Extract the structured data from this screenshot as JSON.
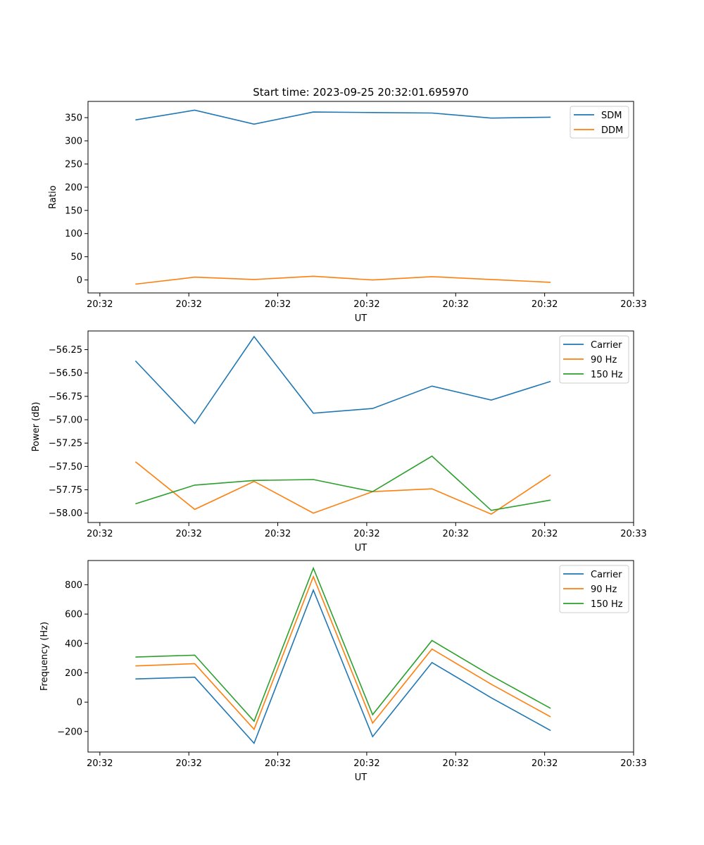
{
  "figure": {
    "title": "Start time: 2023-09-25 20:32:01.695970"
  },
  "colors": {
    "c0": "#1f77b4",
    "c1": "#ff7f0e",
    "c2": "#2ca02c",
    "axis": "#000000",
    "legend_border": "#cccccc"
  },
  "chart_data": [
    {
      "type": "line",
      "title": "Start time: 2023-09-25 20:32:01.695970",
      "xlabel": "UT",
      "ylabel": "Ratio",
      "x": [
        1,
        2,
        3,
        4,
        5,
        6,
        7,
        8
      ],
      "xlim": [
        0.2,
        9.4
      ],
      "x_ticks": [
        0.4,
        1.9,
        3.4,
        4.9,
        6.4,
        7.9,
        9.4
      ],
      "x_tick_labels": [
        "20:32",
        "20:32",
        "20:32",
        "20:32",
        "20:32",
        "20:32",
        "20:33"
      ],
      "ylim": [
        -28,
        385
      ],
      "y_ticks": [
        0,
        50,
        100,
        150,
        200,
        250,
        300,
        350
      ],
      "y_tick_labels": [
        "0",
        "50",
        "100",
        "150",
        "200",
        "250",
        "300",
        "350"
      ],
      "legend_position": "top-right",
      "series": [
        {
          "name": "SDM",
          "color_key": "c0",
          "values": [
            345,
            366,
            336,
            362,
            361,
            360,
            349,
            351
          ]
        },
        {
          "name": "DDM",
          "color_key": "c1",
          "values": [
            -9,
            6,
            1,
            8,
            0,
            7,
            1,
            -5
          ]
        }
      ]
    },
    {
      "type": "line",
      "title": "",
      "xlabel": "UT",
      "ylabel": "Power (dB)",
      "x": [
        1,
        2,
        3,
        4,
        5,
        6,
        7,
        8
      ],
      "xlim": [
        0.2,
        9.4
      ],
      "x_ticks": [
        0.4,
        1.9,
        3.4,
        4.9,
        6.4,
        7.9,
        9.4
      ],
      "x_tick_labels": [
        "20:32",
        "20:32",
        "20:32",
        "20:32",
        "20:32",
        "20:32",
        "20:33"
      ],
      "ylim": [
        -58.1,
        -56.05
      ],
      "y_ticks": [
        -58.0,
        -57.75,
        -57.5,
        -57.25,
        -57.0,
        -56.75,
        -56.5,
        -56.25
      ],
      "y_tick_labels": [
        "−58.00",
        "−57.75",
        "−57.50",
        "−57.25",
        "−57.00",
        "−56.75",
        "−56.50",
        "−56.25"
      ],
      "legend_position": "top-right",
      "series": [
        {
          "name": "Carrier",
          "color_key": "c0",
          "values": [
            -56.37,
            -57.04,
            -56.11,
            -56.93,
            -56.88,
            -56.64,
            -56.79,
            -56.59
          ]
        },
        {
          "name": "90 Hz",
          "color_key": "c1",
          "values": [
            -57.45,
            -57.96,
            -57.66,
            -58.0,
            -57.77,
            -57.74,
            -58.01,
            -57.59
          ]
        },
        {
          "name": "150 Hz",
          "color_key": "c2",
          "values": [
            -57.9,
            -57.7,
            -57.65,
            -57.64,
            -57.77,
            -57.39,
            -57.97,
            -57.86
          ]
        }
      ]
    },
    {
      "type": "line",
      "title": "",
      "xlabel": "UT",
      "ylabel": "Frequency (Hz)",
      "x": [
        1,
        2,
        3,
        4,
        5,
        6,
        7,
        8
      ],
      "xlim": [
        0.2,
        9.4
      ],
      "x_ticks": [
        0.4,
        1.9,
        3.4,
        4.9,
        6.4,
        7.9,
        9.4
      ],
      "x_tick_labels": [
        "20:32",
        "20:32",
        "20:32",
        "20:32",
        "20:32",
        "20:32",
        "20:33"
      ],
      "ylim": [
        -340,
        965
      ],
      "y_ticks": [
        -200,
        0,
        200,
        400,
        600,
        800
      ],
      "y_tick_labels": [
        "−200",
        "0",
        "200",
        "400",
        "600",
        "800"
      ],
      "legend_position": "top-right",
      "series": [
        {
          "name": "Carrier",
          "color_key": "c0",
          "values": [
            158,
            170,
            -280,
            763,
            -235,
            270,
            30,
            -193
          ]
        },
        {
          "name": "90 Hz",
          "color_key": "c1",
          "values": [
            247,
            262,
            -185,
            855,
            -143,
            362,
            122,
            -100
          ]
        },
        {
          "name": "150 Hz",
          "color_key": "c2",
          "values": [
            307,
            320,
            -130,
            913,
            -85,
            420,
            180,
            -42
          ]
        }
      ]
    }
  ]
}
